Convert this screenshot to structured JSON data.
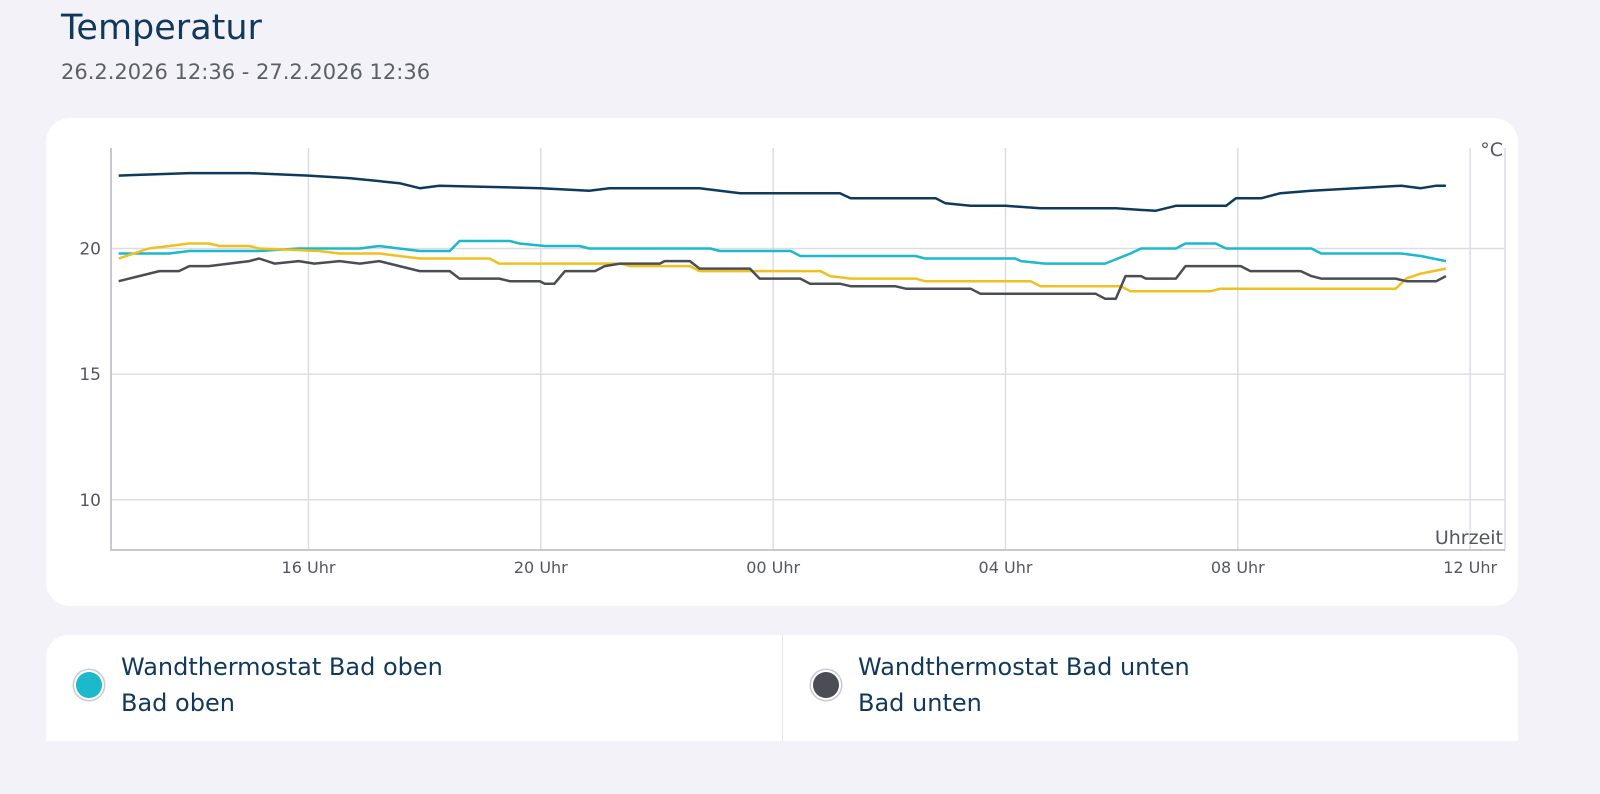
{
  "header": {
    "title": "Temperatur",
    "range": "26.2.2026 12:36 - 27.2.2026 12:36"
  },
  "chart_data": {
    "type": "line",
    "title": "",
    "xlabel": "Uhrzeit",
    "ylabel": "°C",
    "xlim": [
      "2026-02-26T12:36",
      "2026-02-27T12:36"
    ],
    "ylim": [
      8,
      24
    ],
    "grid": true,
    "x_ticks": [
      {
        "t": "2026-02-26T16:00",
        "label": "16 Uhr"
      },
      {
        "t": "2026-02-26T20:00",
        "label": "20 Uhr"
      },
      {
        "t": "2026-02-27T00:00",
        "label": "00 Uhr"
      },
      {
        "t": "2026-02-27T04:00",
        "label": "04 Uhr"
      },
      {
        "t": "2026-02-27T08:00",
        "label": "08 Uhr"
      },
      {
        "t": "2026-02-27T12:00",
        "label": "12 Uhr"
      }
    ],
    "y_ticks": [
      {
        "v": 20,
        "label": "20"
      },
      {
        "v": 15,
        "label": "15"
      },
      {
        "v": 10,
        "label": "10"
      }
    ],
    "series": [
      {
        "color": "#0e3a5c",
        "points": [
          [
            "2026-02-26T12:44",
            22.9
          ],
          [
            "2026-02-26T13:57",
            23.0
          ],
          [
            "2026-02-26T14:59",
            23.0
          ],
          [
            "2026-02-26T16:00",
            22.9
          ],
          [
            "2026-02-26T16:42",
            22.8
          ],
          [
            "2026-02-26T17:34",
            22.6
          ],
          [
            "2026-02-26T17:55",
            22.4
          ],
          [
            "2026-02-26T18:15",
            22.5
          ],
          [
            "2026-02-26T20:00",
            22.4
          ],
          [
            "2026-02-26T20:50",
            22.3
          ],
          [
            "2026-02-26T21:11",
            22.4
          ],
          [
            "2026-02-26T22:44",
            22.4
          ],
          [
            "2026-02-26T23:26",
            22.2
          ],
          [
            "2026-02-27T01:09",
            22.2
          ],
          [
            "2026-02-27T01:20",
            22.0
          ],
          [
            "2026-02-27T02:48",
            22.0
          ],
          [
            "2026-02-27T02:58",
            21.8
          ],
          [
            "2026-02-27T03:24",
            21.7
          ],
          [
            "2026-02-27T04:00",
            21.7
          ],
          [
            "2026-02-27T04:36",
            21.6
          ],
          [
            "2026-02-27T05:54",
            21.6
          ],
          [
            "2026-02-27T06:35",
            21.5
          ],
          [
            "2026-02-27T06:56",
            21.7
          ],
          [
            "2026-02-27T07:48",
            21.7
          ],
          [
            "2026-02-27T07:58",
            22.0
          ],
          [
            "2026-02-27T08:24",
            22.0
          ],
          [
            "2026-02-27T08:44",
            22.2
          ],
          [
            "2026-02-27T09:16",
            22.3
          ],
          [
            "2026-02-27T10:02",
            22.4
          ],
          [
            "2026-02-27T10:49",
            22.5
          ],
          [
            "2026-02-27T11:09",
            22.4
          ],
          [
            "2026-02-27T11:25",
            22.5
          ],
          [
            "2026-02-27T11:35",
            22.5
          ]
        ]
      },
      {
        "name": "Wandthermostat Bad oben",
        "color": "#1cb8cc",
        "points": [
          [
            "2026-02-26T12:44",
            19.8
          ],
          [
            "2026-02-26T13:36",
            19.8
          ],
          [
            "2026-02-26T13:57",
            19.9
          ],
          [
            "2026-02-26T15:09",
            19.9
          ],
          [
            "2026-02-26T15:50",
            20.0
          ],
          [
            "2026-02-26T16:53",
            20.0
          ],
          [
            "2026-02-26T17:13",
            20.1
          ],
          [
            "2026-02-26T17:55",
            19.9
          ],
          [
            "2026-02-26T18:26",
            19.9
          ],
          [
            "2026-02-26T18:36",
            20.3
          ],
          [
            "2026-02-26T19:28",
            20.3
          ],
          [
            "2026-02-26T19:38",
            20.2
          ],
          [
            "2026-02-26T20:04",
            20.1
          ],
          [
            "2026-02-26T20:40",
            20.1
          ],
          [
            "2026-02-26T20:50",
            20.0
          ],
          [
            "2026-02-26T22:55",
            20.0
          ],
          [
            "2026-02-26T23:05",
            19.9
          ],
          [
            "2026-02-27T00:18",
            19.9
          ],
          [
            "2026-02-27T00:28",
            19.7
          ],
          [
            "2026-02-27T02:27",
            19.7
          ],
          [
            "2026-02-27T02:37",
            19.6
          ],
          [
            "2026-02-27T04:10",
            19.6
          ],
          [
            "2026-02-27T04:16",
            19.5
          ],
          [
            "2026-02-27T04:41",
            19.4
          ],
          [
            "2026-02-27T05:43",
            19.4
          ],
          [
            "2026-02-27T06:09",
            19.8
          ],
          [
            "2026-02-27T06:20",
            20.0
          ],
          [
            "2026-02-27T06:56",
            20.0
          ],
          [
            "2026-02-27T07:06",
            20.2
          ],
          [
            "2026-02-27T07:37",
            20.2
          ],
          [
            "2026-02-27T07:48",
            20.0
          ],
          [
            "2026-02-27T09:16",
            20.0
          ],
          [
            "2026-02-27T09:26",
            19.8
          ],
          [
            "2026-02-27T10:49",
            19.8
          ],
          [
            "2026-02-27T11:09",
            19.7
          ],
          [
            "2026-02-27T11:35",
            19.5
          ]
        ]
      },
      {
        "color": "#f0c020",
        "points": [
          [
            "2026-02-26T12:44",
            19.6
          ],
          [
            "2026-02-26T13:15",
            20.0
          ],
          [
            "2026-02-26T13:57",
            20.2
          ],
          [
            "2026-02-26T14:17",
            20.2
          ],
          [
            "2026-02-26T14:28",
            20.1
          ],
          [
            "2026-02-26T14:59",
            20.1
          ],
          [
            "2026-02-26T15:09",
            20.0
          ],
          [
            "2026-02-26T16:11",
            19.9
          ],
          [
            "2026-02-26T16:32",
            19.8
          ],
          [
            "2026-02-26T17:13",
            19.8
          ],
          [
            "2026-02-26T17:34",
            19.7
          ],
          [
            "2026-02-26T17:55",
            19.6
          ],
          [
            "2026-02-26T19:07",
            19.6
          ],
          [
            "2026-02-26T19:17",
            19.4
          ],
          [
            "2026-02-26T21:22",
            19.4
          ],
          [
            "2026-02-26T21:32",
            19.3
          ],
          [
            "2026-02-26T22:34",
            19.3
          ],
          [
            "2026-02-26T22:44",
            19.1
          ],
          [
            "2026-02-27T00:49",
            19.1
          ],
          [
            "2026-02-27T00:59",
            18.9
          ],
          [
            "2026-02-27T01:20",
            18.8
          ],
          [
            "2026-02-27T02:27",
            18.8
          ],
          [
            "2026-02-27T02:37",
            18.7
          ],
          [
            "2026-02-27T04:26",
            18.7
          ],
          [
            "2026-02-27T04:36",
            18.5
          ],
          [
            "2026-02-27T05:59",
            18.5
          ],
          [
            "2026-02-27T06:09",
            18.3
          ],
          [
            "2026-02-27T07:32",
            18.3
          ],
          [
            "2026-02-27T07:42",
            18.4
          ],
          [
            "2026-02-27T10:43",
            18.4
          ],
          [
            "2026-02-27T10:54",
            18.8
          ],
          [
            "2026-02-27T11:09",
            19.0
          ],
          [
            "2026-02-27T11:35",
            19.2
          ]
        ]
      },
      {
        "name": "Wandthermostat Bad unten",
        "color": "#4b4d55",
        "points": [
          [
            "2026-02-26T12:44",
            18.7
          ],
          [
            "2026-02-26T13:05",
            18.9
          ],
          [
            "2026-02-26T13:26",
            19.1
          ],
          [
            "2026-02-26T13:46",
            19.1
          ],
          [
            "2026-02-26T13:57",
            19.3
          ],
          [
            "2026-02-26T14:17",
            19.3
          ],
          [
            "2026-02-26T14:59",
            19.5
          ],
          [
            "2026-02-26T15:09",
            19.6
          ],
          [
            "2026-02-26T15:25",
            19.4
          ],
          [
            "2026-02-26T15:50",
            19.5
          ],
          [
            "2026-02-26T16:06",
            19.4
          ],
          [
            "2026-02-26T16:32",
            19.5
          ],
          [
            "2026-02-26T16:53",
            19.4
          ],
          [
            "2026-02-26T17:13",
            19.5
          ],
          [
            "2026-02-26T17:34",
            19.3
          ],
          [
            "2026-02-26T17:55",
            19.1
          ],
          [
            "2026-02-26T18:26",
            19.1
          ],
          [
            "2026-02-26T18:36",
            18.8
          ],
          [
            "2026-02-26T19:17",
            18.8
          ],
          [
            "2026-02-26T19:28",
            18.7
          ],
          [
            "2026-02-26T19:59",
            18.7
          ],
          [
            "2026-02-26T20:04",
            18.6
          ],
          [
            "2026-02-26T20:14",
            18.6
          ],
          [
            "2026-02-26T20:25",
            19.1
          ],
          [
            "2026-02-26T20:56",
            19.1
          ],
          [
            "2026-02-26T21:06",
            19.3
          ],
          [
            "2026-02-26T21:22",
            19.4
          ],
          [
            "2026-02-26T22:03",
            19.4
          ],
          [
            "2026-02-26T22:08",
            19.5
          ],
          [
            "2026-02-26T22:34",
            19.5
          ],
          [
            "2026-02-26T22:44",
            19.2
          ],
          [
            "2026-02-26T23:36",
            19.2
          ],
          [
            "2026-02-26T23:46",
            18.8
          ],
          [
            "2026-02-27T00:28",
            18.8
          ],
          [
            "2026-02-27T00:38",
            18.6
          ],
          [
            "2026-02-27T01:09",
            18.6
          ],
          [
            "2026-02-27T01:20",
            18.5
          ],
          [
            "2026-02-27T02:06",
            18.5
          ],
          [
            "2026-02-27T02:17",
            18.4
          ],
          [
            "2026-02-27T03:24",
            18.4
          ],
          [
            "2026-02-27T03:34",
            18.2
          ],
          [
            "2026-02-27T05:33",
            18.2
          ],
          [
            "2026-02-27T05:43",
            18.0
          ],
          [
            "2026-02-27T05:54",
            18.0
          ],
          [
            "2026-02-27T06:04",
            18.9
          ],
          [
            "2026-02-27T06:20",
            18.9
          ],
          [
            "2026-02-27T06:25",
            18.8
          ],
          [
            "2026-02-27T06:56",
            18.8
          ],
          [
            "2026-02-27T07:06",
            19.3
          ],
          [
            "2026-02-27T07:22",
            19.3
          ],
          [
            "2026-02-27T08:03",
            19.3
          ],
          [
            "2026-02-27T08:13",
            19.1
          ],
          [
            "2026-02-27T09:05",
            19.1
          ],
          [
            "2026-02-27T09:16",
            18.9
          ],
          [
            "2026-02-27T09:26",
            18.8
          ],
          [
            "2026-02-27T10:43",
            18.8
          ],
          [
            "2026-02-27T10:54",
            18.7
          ],
          [
            "2026-02-27T11:25",
            18.7
          ],
          [
            "2026-02-27T11:35",
            18.9
          ]
        ]
      }
    ]
  },
  "legend": {
    "items": [
      {
        "name": "Wandthermostat Bad oben",
        "sub": "Bad oben",
        "color": "#1cb8cc"
      },
      {
        "name": "Wandthermostat Bad unten",
        "sub": "Bad unten",
        "color": "#4b4d55"
      }
    ]
  }
}
